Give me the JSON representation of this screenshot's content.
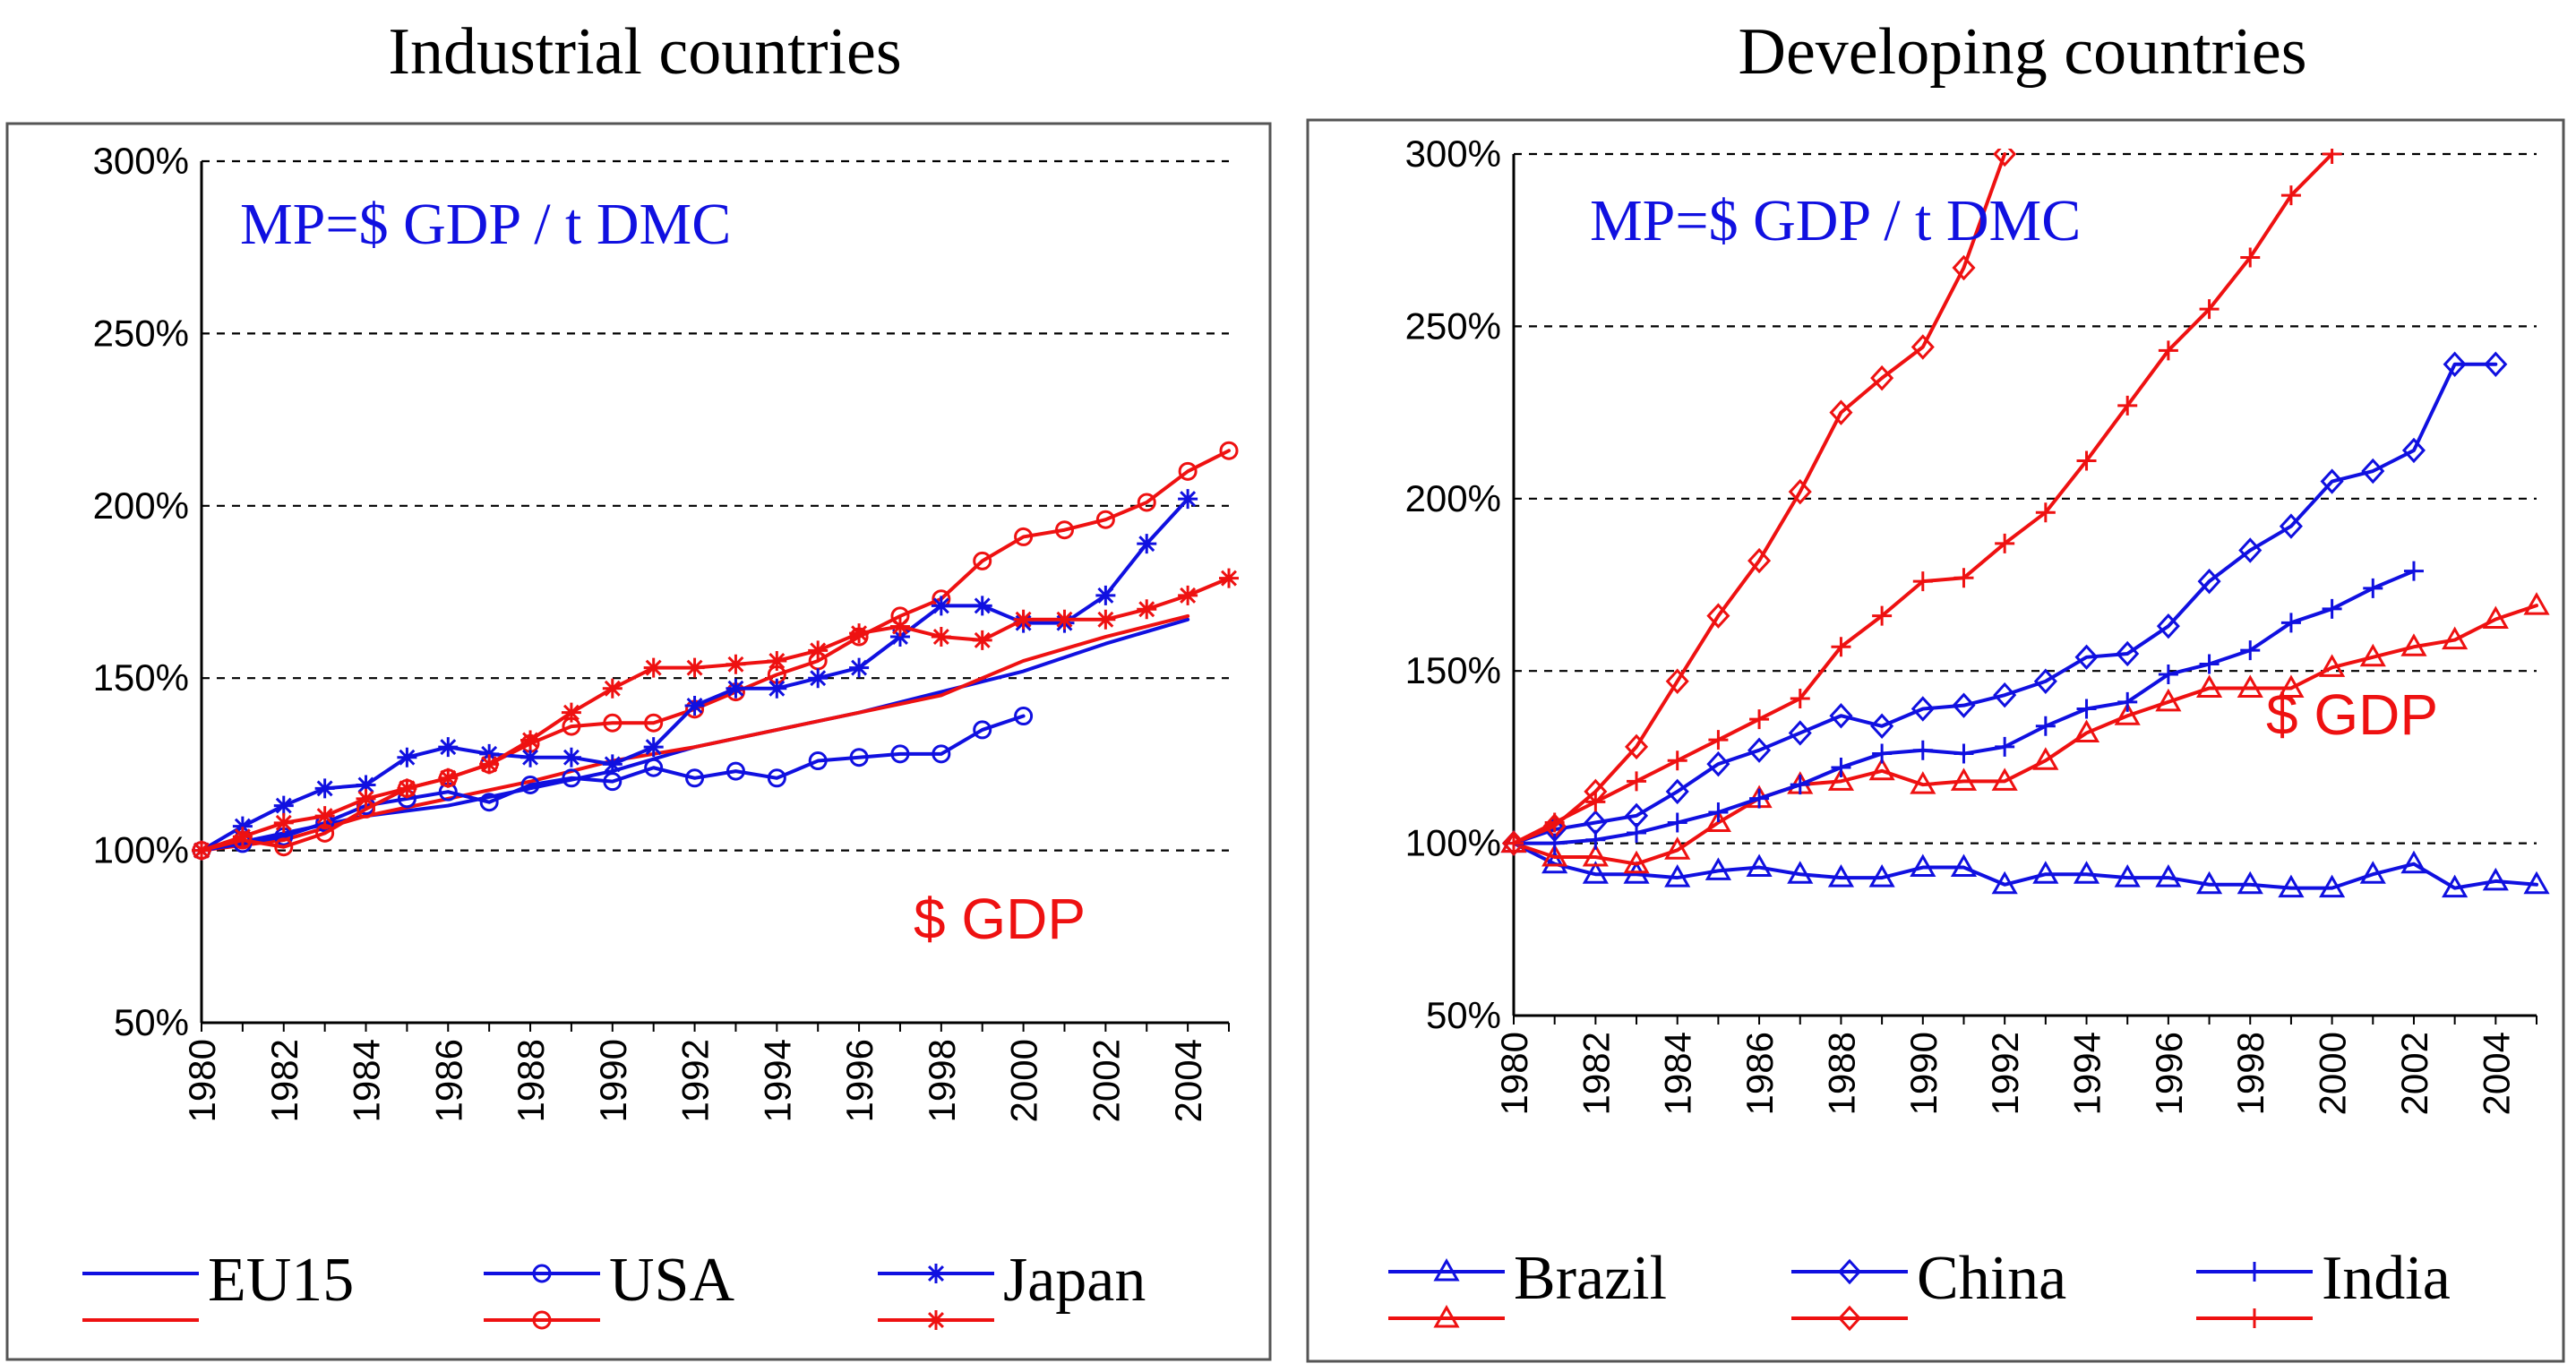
{
  "figure": {
    "left_title": "Industrial countries",
    "right_title": "Developing countries"
  },
  "chart_data": [
    {
      "type": "line",
      "title": "Industrial countries",
      "annotation_metric": "MP=$ GDP / t DMC",
      "annotation_gdp": "$ GDP",
      "xlabel": "",
      "ylabel": "",
      "xlim": [
        1980,
        2005
      ],
      "ylim": [
        50,
        300
      ],
      "x_ticks": [
        "1980",
        "1982",
        "1984",
        "1986",
        "1988",
        "1990",
        "1992",
        "1994",
        "1996",
        "1998",
        "2000",
        "2002",
        "2004"
      ],
      "y_ticks": [
        "300%",
        "250%",
        "200%",
        "150%",
        "100%",
        "50%"
      ],
      "grid": "horizontal dashed",
      "colors": {
        "mp": "#1010e0",
        "gdp": "#ee1111"
      },
      "legend": [
        {
          "label": "EU15",
          "marker": "none"
        },
        {
          "label": "USA",
          "marker": "circle"
        },
        {
          "label": "Japan",
          "marker": "star"
        }
      ],
      "series": [
        {
          "name": "EU15 MP",
          "color": "blue",
          "marker": "none",
          "x": [
            1980,
            1982,
            1984,
            1986,
            1988,
            1990,
            1992,
            1994,
            1996,
            1998,
            2000,
            2002,
            2004
          ],
          "values": [
            100,
            105,
            110,
            113,
            118,
            123,
            130,
            135,
            140,
            146,
            152,
            160,
            167
          ]
        },
        {
          "name": "EU15 GDP",
          "color": "red",
          "marker": "none",
          "x": [
            1980,
            1982,
            1984,
            1986,
            1988,
            1990,
            1992,
            1994,
            1996,
            1998,
            2000,
            2002,
            2004
          ],
          "values": [
            100,
            103,
            110,
            115,
            120,
            126,
            130,
            135,
            140,
            145,
            155,
            162,
            168
          ]
        },
        {
          "name": "USA MP",
          "color": "blue",
          "marker": "circle",
          "x": [
            1980,
            1981,
            1982,
            1983,
            1984,
            1985,
            1986,
            1987,
            1988,
            1989,
            1990,
            1991,
            1992,
            1993,
            1994,
            1995,
            1996,
            1997,
            1998,
            1999,
            2000
          ],
          "values": [
            100,
            102,
            104,
            108,
            113,
            115,
            117,
            114,
            119,
            121,
            120,
            124,
            121,
            123,
            121,
            126,
            127,
            128,
            128,
            135,
            139
          ]
        },
        {
          "name": "USA GDP",
          "color": "red",
          "marker": "circle",
          "x": [
            1980,
            1981,
            1982,
            1983,
            1984,
            1985,
            1986,
            1987,
            1988,
            1989,
            1990,
            1991,
            1992,
            1993,
            1994,
            1995,
            1996,
            1997,
            1998,
            1999,
            2000,
            2001,
            2002,
            2003,
            2004,
            2005
          ],
          "values": [
            100,
            103,
            101,
            105,
            112,
            118,
            121,
            125,
            131,
            136,
            137,
            137,
            141,
            146,
            151,
            155,
            162,
            168,
            173,
            184,
            191,
            193,
            196,
            201,
            210,
            216
          ]
        },
        {
          "name": "Japan MP",
          "color": "blue",
          "marker": "star",
          "x": [
            1980,
            1981,
            1982,
            1983,
            1984,
            1985,
            1986,
            1987,
            1988,
            1989,
            1990,
            1991,
            1992,
            1993,
            1994,
            1995,
            1996,
            1997,
            1998,
            1999,
            2000,
            2001,
            2002,
            2003,
            2004
          ],
          "values": [
            100,
            107,
            113,
            118,
            119,
            127,
            130,
            128,
            127,
            127,
            125,
            130,
            142,
            147,
            147,
            150,
            153,
            162,
            171,
            171,
            166,
            166,
            174,
            189,
            202
          ]
        },
        {
          "name": "Japan GDP",
          "color": "red",
          "marker": "star",
          "x": [
            1980,
            1981,
            1982,
            1983,
            1984,
            1985,
            1986,
            1987,
            1988,
            1989,
            1990,
            1991,
            1992,
            1993,
            1994,
            1995,
            1996,
            1997,
            1998,
            1999,
            2000,
            2001,
            2002,
            2003,
            2004,
            2005
          ],
          "values": [
            100,
            104,
            108,
            110,
            115,
            118,
            121,
            125,
            132,
            140,
            147,
            153,
            153,
            154,
            155,
            158,
            163,
            165,
            162,
            161,
            167,
            167,
            167,
            170,
            174,
            179
          ]
        }
      ]
    },
    {
      "type": "line",
      "title": "Developing countries",
      "annotation_metric": "MP=$ GDP / t DMC",
      "annotation_gdp": "$ GDP",
      "xlabel": "",
      "ylabel": "",
      "xlim": [
        1980,
        2005
      ],
      "ylim": [
        50,
        300
      ],
      "x_ticks": [
        "1980",
        "1982",
        "1984",
        "1986",
        "1988",
        "1990",
        "1992",
        "1994",
        "1996",
        "1998",
        "2000",
        "2002",
        "2004"
      ],
      "y_ticks": [
        "300%",
        "250%",
        "200%",
        "150%",
        "100%",
        "50%"
      ],
      "grid": "horizontal dashed",
      "colors": {
        "mp": "#1010e0",
        "gdp": "#ee1111"
      },
      "legend": [
        {
          "label": "Brazil",
          "marker": "triangle"
        },
        {
          "label": "China",
          "marker": "diamond"
        },
        {
          "label": "India",
          "marker": "plus"
        }
      ],
      "series": [
        {
          "name": "Brazil MP",
          "color": "blue",
          "marker": "triangle",
          "x": [
            1980,
            1981,
            1982,
            1983,
            1984,
            1985,
            1986,
            1987,
            1988,
            1989,
            1990,
            1991,
            1992,
            1993,
            1994,
            1995,
            1996,
            1997,
            1998,
            1999,
            2000,
            2001,
            2002,
            2003,
            2004,
            2005
          ],
          "values": [
            100,
            94,
            91,
            91,
            90,
            92,
            93,
            91,
            90,
            90,
            93,
            93,
            88,
            91,
            91,
            90,
            90,
            88,
            88,
            87,
            87,
            91,
            94,
            87,
            89,
            88
          ]
        },
        {
          "name": "Brazil GDP",
          "color": "red",
          "marker": "triangle",
          "x": [
            1980,
            1981,
            1982,
            1983,
            1984,
            1985,
            1986,
            1987,
            1988,
            1989,
            1990,
            1991,
            1992,
            1993,
            1994,
            1995,
            1996,
            1997,
            1998,
            1999,
            2000,
            2001,
            2002,
            2003,
            2004,
            2005
          ],
          "values": [
            100,
            96,
            96,
            94,
            98,
            106,
            113,
            117,
            118,
            121,
            117,
            118,
            118,
            124,
            132,
            137,
            141,
            145,
            145,
            145,
            151,
            154,
            157,
            159,
            165,
            169
          ]
        },
        {
          "name": "China MP",
          "color": "blue",
          "marker": "diamond",
          "x": [
            1980,
            1981,
            1982,
            1983,
            1984,
            1985,
            1986,
            1987,
            1988,
            1989,
            1990,
            1991,
            1992,
            1993,
            1994,
            1995,
            1996,
            1997,
            1998,
            1999,
            2000,
            2001,
            2002,
            2003,
            2004
          ],
          "values": [
            100,
            104,
            106,
            108,
            115,
            123,
            127,
            132,
            137,
            134,
            139,
            140,
            143,
            147,
            154,
            155,
            163,
            176,
            185,
            192,
            205,
            208,
            214,
            239,
            239
          ]
        },
        {
          "name": "China GDP",
          "color": "red",
          "marker": "diamond",
          "x": [
            1980,
            1981,
            1982,
            1983,
            1984,
            1985,
            1986,
            1987,
            1988,
            1989,
            1990,
            1991,
            1992
          ],
          "values": [
            100,
            105,
            115,
            128,
            147,
            166,
            182,
            202,
            225,
            235,
            244,
            267,
            300
          ]
        },
        {
          "name": "India MP",
          "color": "blue",
          "marker": "plus",
          "x": [
            1980,
            1981,
            1982,
            1983,
            1984,
            1985,
            1986,
            1987,
            1988,
            1989,
            1990,
            1991,
            1992,
            1993,
            1994,
            1995,
            1996,
            1997,
            1998,
            1999,
            2000,
            2001,
            2002
          ],
          "values": [
            100,
            100,
            101,
            103,
            106,
            109,
            113,
            117,
            122,
            126,
            127,
            126,
            128,
            134,
            139,
            141,
            149,
            152,
            156,
            164,
            168,
            174,
            179
          ]
        },
        {
          "name": "India GDP",
          "color": "red",
          "marker": "plus",
          "x": [
            1980,
            1981,
            1982,
            1983,
            1984,
            1985,
            1986,
            1987,
            1988,
            1989,
            1990,
            1991,
            1992,
            1993,
            1994,
            1995,
            1996,
            1997,
            1998,
            1999,
            2000
          ],
          "values": [
            100,
            106,
            112,
            118,
            124,
            130,
            136,
            142,
            157,
            166,
            176,
            177,
            187,
            196,
            211,
            227,
            243,
            255,
            270,
            288,
            300
          ]
        }
      ]
    }
  ]
}
